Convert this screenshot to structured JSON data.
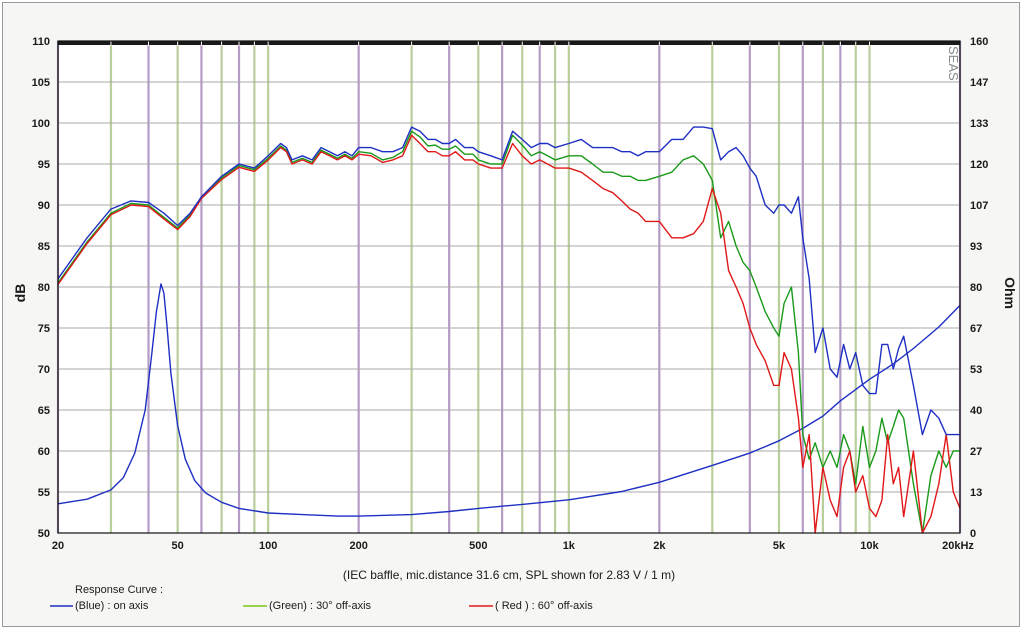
{
  "chart_data": {
    "type": "line",
    "xscale": "log",
    "xlim": [
      20,
      20000
    ],
    "ylim": [
      50,
      110
    ],
    "y2lim": [
      0,
      160
    ],
    "ylabel": "dB",
    "y2label": "Ohm",
    "y_ticks": [
      50,
      55,
      60,
      65,
      70,
      75,
      80,
      85,
      90,
      95,
      100,
      105,
      110
    ],
    "y2_ticks": [
      "0",
      "13",
      "27",
      "40",
      "53",
      "67",
      "80",
      "93",
      "107",
      "120",
      "133",
      "147",
      "160"
    ],
    "x_ticks": [
      {
        "v": 20,
        "label": "20"
      },
      {
        "v": 50,
        "label": "50"
      },
      {
        "v": 100,
        "label": "100"
      },
      {
        "v": 200,
        "label": "200"
      },
      {
        "v": 500,
        "label": "500"
      },
      {
        "v": 1000,
        "label": "1k"
      },
      {
        "v": 2000,
        "label": "2k"
      },
      {
        "v": 5000,
        "label": "5k"
      },
      {
        "v": 10000,
        "label": "10k"
      },
      {
        "v": 20000,
        "label": "20kHz"
      }
    ],
    "watermark": "SEAS",
    "note": "(IEC baffle, mic.distance 31.6 cm, SPL shown for 2.83 V / 1 m)",
    "legend": {
      "title": "Response Curve :",
      "items": [
        "(Blue)  : on axis",
        "(Green) : 30° off-axis",
        "( Red ) : 60° off-axis"
      ]
    },
    "series": [
      {
        "name": "on axis",
        "color": "#1f2fc4",
        "axis": "left",
        "x": [
          20,
          25,
          30,
          35,
          40,
          45,
          50,
          55,
          60,
          70,
          80,
          90,
          100,
          110,
          115,
          120,
          130,
          140,
          150,
          160,
          170,
          180,
          190,
          200,
          220,
          240,
          260,
          280,
          300,
          320,
          340,
          360,
          380,
          400,
          420,
          450,
          480,
          500,
          550,
          600,
          650,
          700,
          750,
          800,
          850,
          900,
          1000,
          1100,
          1200,
          1300,
          1400,
          1500,
          1600,
          1700,
          1800,
          2000,
          2200,
          2400,
          2600,
          2800,
          3000,
          3200,
          3400,
          3600,
          3800,
          4000,
          4200,
          4500,
          4800,
          5000,
          5200,
          5500,
          5800,
          6000,
          6300,
          6600,
          7000,
          7400,
          7800,
          8200,
          8600,
          9000,
          9500,
          10000,
          10500,
          11000,
          11500,
          12000,
          12500,
          13000,
          14000,
          15000,
          16000,
          17000,
          18000,
          19000,
          20000
        ],
        "y": [
          81,
          86,
          89.5,
          90.5,
          90.3,
          89,
          87.5,
          89,
          91,
          93.5,
          95,
          94.5,
          96,
          97.5,
          97,
          95.5,
          96,
          95.5,
          97,
          96.5,
          96,
          96.5,
          96,
          97,
          97,
          96.5,
          96.5,
          97,
          99.5,
          99,
          98,
          98,
          97.5,
          97.5,
          98,
          97,
          97,
          96.5,
          96,
          95.5,
          99,
          98,
          97,
          97.5,
          97.5,
          97,
          97.5,
          98,
          97,
          97,
          97,
          96.5,
          96.5,
          96,
          96.5,
          96.5,
          98,
          98,
          99.5,
          99.5,
          99.3,
          95.5,
          96.5,
          97,
          96,
          94.5,
          93.5,
          90,
          89,
          90,
          90,
          89,
          91,
          86,
          81,
          72,
          75,
          70,
          69,
          73,
          70,
          72,
          68,
          67,
          67,
          73,
          73,
          70,
          72.5,
          74,
          68,
          62,
          65,
          64,
          62,
          62,
          62
        ]
      },
      {
        "name": "30° off-axis",
        "color": "#1a9a1a",
        "axis": "left",
        "x": [
          20,
          25,
          30,
          35,
          40,
          45,
          50,
          55,
          60,
          70,
          80,
          90,
          100,
          110,
          115,
          120,
          130,
          140,
          150,
          160,
          170,
          180,
          190,
          200,
          220,
          240,
          260,
          280,
          300,
          320,
          340,
          360,
          380,
          400,
          420,
          450,
          480,
          500,
          550,
          600,
          650,
          700,
          750,
          800,
          850,
          900,
          1000,
          1100,
          1200,
          1300,
          1400,
          1500,
          1600,
          1700,
          1800,
          2000,
          2200,
          2400,
          2600,
          2800,
          3000,
          3200,
          3400,
          3600,
          3800,
          4000,
          4200,
          4500,
          4800,
          5000,
          5200,
          5500,
          5800,
          6000,
          6300,
          6600,
          7000,
          7400,
          7800,
          8200,
          8600,
          9000,
          9500,
          10000,
          10500,
          11000,
          11500,
          12000,
          12500,
          13000,
          14000,
          15000,
          16000,
          17000,
          18000,
          19000,
          20000
        ],
        "y": [
          80.5,
          85.5,
          89,
          90.2,
          90,
          88.5,
          87.2,
          88.8,
          91,
          93.3,
          94.8,
          94.3,
          95.7,
          97.2,
          96.7,
          95.2,
          95.7,
          95.2,
          96.7,
          96.2,
          95.7,
          96.2,
          95.7,
          96.5,
          96.3,
          95.5,
          95.8,
          96.5,
          99,
          98.3,
          97.2,
          97.3,
          96.8,
          96.8,
          97.2,
          96.2,
          96.2,
          95.5,
          95,
          95,
          98.5,
          97.3,
          96,
          96.5,
          96,
          95.5,
          96,
          96,
          95,
          94,
          94,
          93.5,
          93.5,
          93,
          93,
          93.5,
          94,
          95.5,
          96,
          95,
          93,
          86,
          88,
          85,
          83,
          82,
          80,
          77,
          75,
          74,
          78,
          80,
          72,
          62,
          59,
          61,
          58,
          60,
          58,
          62,
          60,
          56,
          63,
          58,
          60,
          64,
          61,
          63,
          65,
          64,
          56,
          50,
          57,
          60,
          58,
          60,
          60
        ]
      },
      {
        "name": "60° off-axis",
        "color": "#e01818",
        "axis": "left",
        "x": [
          20,
          25,
          30,
          35,
          40,
          45,
          50,
          55,
          60,
          70,
          80,
          90,
          100,
          110,
          115,
          120,
          130,
          140,
          150,
          160,
          170,
          180,
          190,
          200,
          220,
          240,
          260,
          280,
          300,
          320,
          340,
          360,
          380,
          400,
          420,
          450,
          480,
          500,
          550,
          600,
          650,
          700,
          750,
          800,
          850,
          900,
          1000,
          1100,
          1200,
          1300,
          1400,
          1500,
          1600,
          1700,
          1800,
          2000,
          2200,
          2400,
          2600,
          2800,
          3000,
          3200,
          3400,
          3600,
          3800,
          4000,
          4200,
          4500,
          4800,
          5000,
          5200,
          5500,
          5800,
          6000,
          6300,
          6600,
          7000,
          7400,
          7800,
          8200,
          8600,
          9000,
          9500,
          10000,
          10500,
          11000,
          11500,
          12000,
          12500,
          13000,
          14000,
          15000,
          16000,
          17000,
          18000,
          19000,
          20000
        ],
        "y": [
          80.3,
          85.3,
          88.8,
          90,
          89.8,
          88.3,
          87,
          88.6,
          90.8,
          93.1,
          94.6,
          94.1,
          95.5,
          97,
          96.5,
          95,
          95.5,
          95,
          96.5,
          96,
          95.5,
          96,
          95.5,
          96.2,
          96,
          95.2,
          95.5,
          96,
          98.5,
          97.5,
          96.5,
          96.5,
          96,
          96,
          96.5,
          95.5,
          95.5,
          95,
          94.5,
          94.5,
          97.5,
          96,
          95,
          95.5,
          95,
          94.5,
          94.5,
          94,
          93,
          92,
          91.5,
          90.5,
          89.5,
          89,
          88,
          88,
          86,
          86,
          86.5,
          88,
          92,
          89,
          82,
          80,
          78,
          75,
          73,
          71,
          68,
          68,
          72,
          70,
          64,
          58,
          62,
          50,
          58,
          54,
          52,
          58,
          60,
          55,
          57,
          53,
          52,
          54,
          62,
          56,
          58,
          52,
          60,
          50,
          52,
          56,
          62,
          55,
          53
        ]
      },
      {
        "name": "Impedance",
        "color": "#1f2fc4",
        "axis": "right",
        "x": [
          20,
          25,
          30,
          33,
          36,
          39,
          41,
          42.5,
          44,
          45,
          46,
          47.5,
          50,
          53,
          57,
          62,
          70,
          80,
          100,
          130,
          170,
          200,
          300,
          400,
          500,
          700,
          1000,
          1500,
          2000,
          3000,
          4000,
          5000,
          6000,
          7000,
          8000,
          10000,
          12000,
          14000,
          17000,
          20000
        ],
        "y": [
          9.5,
          11,
          14,
          18,
          26,
          40,
          58,
          72,
          81,
          78,
          68,
          52,
          35,
          24,
          17,
          13,
          10,
          8,
          6.5,
          6,
          5.5,
          5.5,
          6,
          7,
          8,
          9.3,
          10.8,
          13.5,
          16.5,
          22,
          26,
          30,
          34,
          38,
          43,
          50,
          55,
          60,
          67,
          74
        ]
      }
    ]
  }
}
